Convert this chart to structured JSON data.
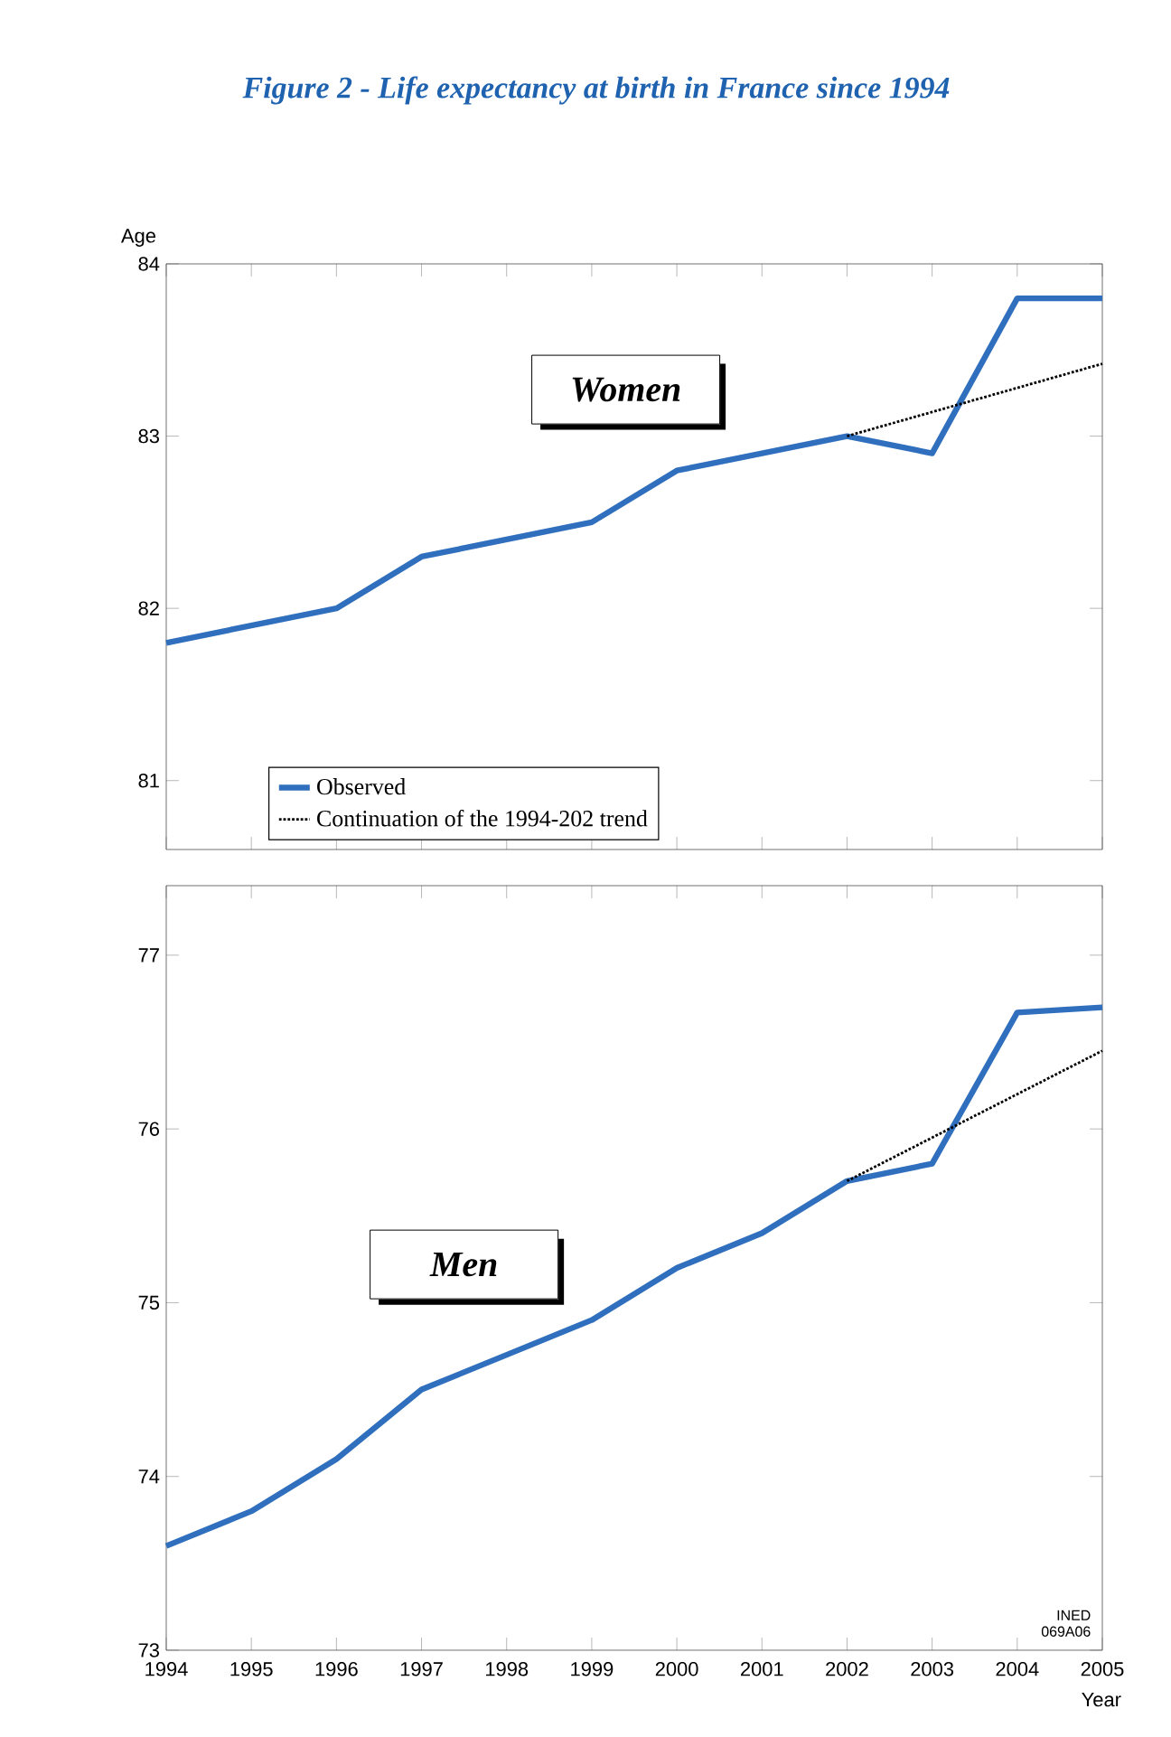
{
  "chart_data": [
    {
      "type": "line",
      "title": "Figure 2 - Life expectancy at birth in France since 1994",
      "ylabel": "Age",
      "x": [
        1994,
        1995,
        1996,
        1997,
        1998,
        1999,
        2000,
        2001,
        2002,
        2003,
        2004,
        2005
      ],
      "series": [
        {
          "name": "Observed",
          "color": "#2f6fbd",
          "line_style": "solid",
          "values": [
            81.8,
            81.9,
            82.0,
            82.3,
            82.4,
            82.5,
            82.8,
            82.9,
            83.0,
            82.9,
            83.8,
            83.8
          ]
        },
        {
          "name": "Continuation of the 1994-202 trend",
          "color": "#000000",
          "line_style": "dotted",
          "x": [
            2002,
            2003,
            2004,
            2005
          ],
          "values": [
            83.0,
            83.14,
            83.28,
            83.42
          ]
        }
      ],
      "xlim": [
        1994,
        2005
      ],
      "xticks": [
        1994,
        1995,
        1996,
        1997,
        1998,
        1999,
        2000,
        2001,
        2002,
        2003,
        2004,
        2005
      ],
      "ylim": [
        80.6,
        84
      ],
      "yticks": [
        81,
        82,
        83,
        84
      ],
      "tick_labels": "y",
      "legend": "bottom",
      "grid": false,
      "marker": "none",
      "annotations": [
        "Women"
      ]
    },
    {
      "type": "line",
      "xlabel": "Year",
      "x": [
        1994,
        1995,
        1996,
        1997,
        1998,
        1999,
        2000,
        2001,
        2002,
        2003,
        2004,
        2005
      ],
      "series": [
        {
          "color": "#2f6fbd",
          "line_style": "solid",
          "values": [
            73.6,
            73.8,
            74.1,
            74.5,
            74.7,
            74.9,
            75.2,
            75.4,
            75.7,
            75.8,
            76.67,
            76.7
          ]
        },
        {
          "color": "#000000",
          "line_style": "dotted",
          "x": [
            2002,
            2003,
            2004,
            2005
          ],
          "values": [
            75.7,
            75.95,
            76.2,
            76.45
          ]
        }
      ],
      "xlim": [
        1994,
        2005
      ],
      "xticks": [
        1994,
        1995,
        1996,
        1997,
        1998,
        1999,
        2000,
        2001,
        2002,
        2003,
        2004,
        2005
      ],
      "ylim": [
        73,
        77.4
      ],
      "yticks": [
        73,
        74,
        75,
        76,
        77
      ],
      "grid": false,
      "marker": "none",
      "annotations": [
        "Men",
        "INED 069A06"
      ]
    }
  ]
}
